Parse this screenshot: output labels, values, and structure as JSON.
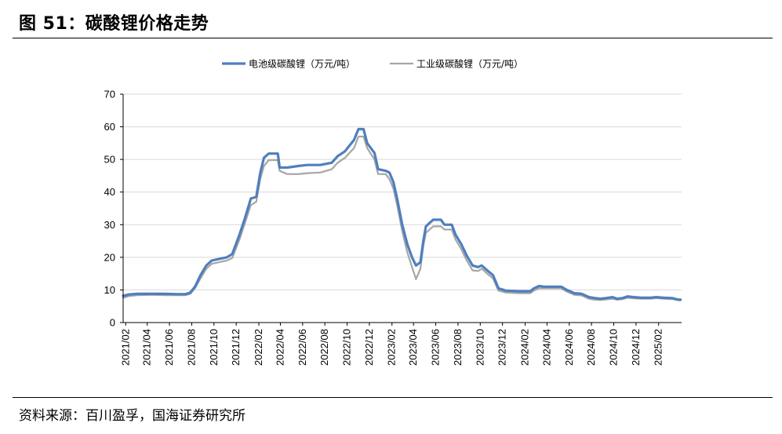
{
  "header": {
    "title": "图 51：碳酸锂价格走势"
  },
  "footer": {
    "source": "资料来源：百川盈孚，国海证券研究所"
  },
  "colors": {
    "battery": "#4f7fbd",
    "industrial": "#a6a6a6",
    "axis": "#000000",
    "grid": "#d9d9d9"
  },
  "chart_data": {
    "type": "line",
    "title": "",
    "xlabel": "",
    "ylabel": "",
    "ylim": [
      0,
      70
    ],
    "yticks": [
      "0",
      "10",
      "20",
      "30",
      "40",
      "50",
      "60",
      "70"
    ],
    "xlim": [
      "2021-01-25",
      "2025-04-05"
    ],
    "xticks": [
      "2021/02",
      "2021/04",
      "2021/06",
      "2021/08",
      "2021/10",
      "2021/12",
      "2022/02",
      "2022/04",
      "2022/06",
      "2022/08",
      "2022/10",
      "2022/12",
      "2023/02",
      "2023/04",
      "2023/06",
      "2023/08",
      "2023/10",
      "2023/12",
      "2024/02",
      "2024/04",
      "2024/06",
      "2024/08",
      "2024/10",
      "2024/12",
      "2025/02"
    ],
    "grid": "horizontal",
    "legend_position": "top",
    "series": [
      {
        "name": "电池级碳酸锂（万元/吨）",
        "color": "#4f7fbd",
        "points": [
          [
            "2021-01-25",
            8.2
          ],
          [
            "2021-02-10",
            8.6
          ],
          [
            "2021-03-05",
            8.8
          ],
          [
            "2021-04-15",
            8.8
          ],
          [
            "2021-05-20",
            8.8
          ],
          [
            "2021-06-20",
            8.7
          ],
          [
            "2021-07-15",
            8.7
          ],
          [
            "2021-07-28",
            9.2
          ],
          [
            "2021-08-10",
            11.0
          ],
          [
            "2021-08-25",
            14.5
          ],
          [
            "2021-09-10",
            17.5
          ],
          [
            "2021-09-25",
            19.0
          ],
          [
            "2021-10-15",
            19.5
          ],
          [
            "2021-11-05",
            20.0
          ],
          [
            "2021-11-20",
            21.0
          ],
          [
            "2021-12-10",
            27.0
          ],
          [
            "2021-12-25",
            32.0
          ],
          [
            "2022-01-10",
            38.0
          ],
          [
            "2022-01-25",
            38.5
          ],
          [
            "2022-02-05",
            46.0
          ],
          [
            "2022-02-15",
            50.5
          ],
          [
            "2022-02-28",
            51.8
          ],
          [
            "2022-03-25",
            51.8
          ],
          [
            "2022-03-30",
            47.5
          ],
          [
            "2022-04-20",
            47.5
          ],
          [
            "2022-05-20",
            48.0
          ],
          [
            "2022-06-15",
            48.3
          ],
          [
            "2022-07-20",
            48.3
          ],
          [
            "2022-08-20",
            49.0
          ],
          [
            "2022-09-05",
            51.0
          ],
          [
            "2022-09-25",
            52.5
          ],
          [
            "2022-10-20",
            56.0
          ],
          [
            "2022-11-01",
            59.3
          ],
          [
            "2022-11-15",
            59.3
          ],
          [
            "2022-11-25",
            55.0
          ],
          [
            "2022-12-15",
            52.0
          ],
          [
            "2022-12-25",
            47.0
          ],
          [
            "2023-01-15",
            46.5
          ],
          [
            "2023-01-25",
            46.0
          ],
          [
            "2023-02-05",
            43.0
          ],
          [
            "2023-02-15",
            38.0
          ],
          [
            "2023-03-01",
            30.0
          ],
          [
            "2023-03-15",
            24.0
          ],
          [
            "2023-03-28",
            20.0
          ],
          [
            "2023-04-08",
            17.5
          ],
          [
            "2023-04-20",
            18.5
          ],
          [
            "2023-04-28",
            25.0
          ],
          [
            "2023-05-05",
            29.5
          ],
          [
            "2023-05-15",
            30.5
          ],
          [
            "2023-05-25",
            31.5
          ],
          [
            "2023-06-15",
            31.5
          ],
          [
            "2023-06-25",
            30.0
          ],
          [
            "2023-07-15",
            30.0
          ],
          [
            "2023-07-25",
            27.0
          ],
          [
            "2023-08-10",
            24.0
          ],
          [
            "2023-08-25",
            20.5
          ],
          [
            "2023-09-10",
            17.5
          ],
          [
            "2023-09-25",
            17.0
          ],
          [
            "2023-10-05",
            17.5
          ],
          [
            "2023-10-20",
            16.0
          ],
          [
            "2023-11-05",
            14.5
          ],
          [
            "2023-11-20",
            10.5
          ],
          [
            "2023-12-10",
            9.8
          ],
          [
            "2024-01-15",
            9.6
          ],
          [
            "2024-02-15",
            9.6
          ],
          [
            "2024-02-25",
            10.5
          ],
          [
            "2024-03-10",
            11.2
          ],
          [
            "2024-03-25",
            11.0
          ],
          [
            "2024-04-15",
            11.0
          ],
          [
            "2024-05-10",
            11.0
          ],
          [
            "2024-05-25",
            10.0
          ],
          [
            "2024-06-15",
            9.0
          ],
          [
            "2024-07-05",
            8.8
          ],
          [
            "2024-07-25",
            7.8
          ],
          [
            "2024-08-10",
            7.5
          ],
          [
            "2024-08-25",
            7.3
          ],
          [
            "2024-09-10",
            7.5
          ],
          [
            "2024-09-28",
            7.8
          ],
          [
            "2024-10-10",
            7.3
          ],
          [
            "2024-10-25",
            7.5
          ],
          [
            "2024-11-08",
            8.0
          ],
          [
            "2024-11-25",
            7.8
          ],
          [
            "2024-12-15",
            7.6
          ],
          [
            "2025-01-10",
            7.6
          ],
          [
            "2025-01-25",
            7.8
          ],
          [
            "2025-02-15",
            7.6
          ],
          [
            "2025-03-10",
            7.5
          ],
          [
            "2025-03-28",
            7.0
          ],
          [
            "2025-04-02",
            7.0
          ]
        ]
      },
      {
        "name": "工业级碳酸锂（万元/吨）",
        "color": "#a6a6a6",
        "points": [
          [
            "2021-01-25",
            7.6
          ],
          [
            "2021-02-10",
            8.1
          ],
          [
            "2021-03-05",
            8.4
          ],
          [
            "2021-04-15",
            8.5
          ],
          [
            "2021-05-20",
            8.4
          ],
          [
            "2021-06-20",
            8.4
          ],
          [
            "2021-07-15",
            8.4
          ],
          [
            "2021-07-28",
            8.8
          ],
          [
            "2021-08-10",
            10.5
          ],
          [
            "2021-08-25",
            13.5
          ],
          [
            "2021-09-10",
            16.5
          ],
          [
            "2021-09-25",
            18.0
          ],
          [
            "2021-10-15",
            18.5
          ],
          [
            "2021-11-05",
            19.0
          ],
          [
            "2021-11-20",
            19.8
          ],
          [
            "2021-12-10",
            25.5
          ],
          [
            "2021-12-25",
            30.5
          ],
          [
            "2022-01-10",
            36.0
          ],
          [
            "2022-01-25",
            37.0
          ],
          [
            "2022-02-05",
            44.0
          ],
          [
            "2022-02-15",
            48.0
          ],
          [
            "2022-02-28",
            49.8
          ],
          [
            "2022-03-25",
            49.8
          ],
          [
            "2022-03-30",
            46.5
          ],
          [
            "2022-04-20",
            45.5
          ],
          [
            "2022-05-20",
            45.5
          ],
          [
            "2022-06-15",
            45.8
          ],
          [
            "2022-07-20",
            46.0
          ],
          [
            "2022-08-20",
            47.0
          ],
          [
            "2022-09-05",
            49.0
          ],
          [
            "2022-09-25",
            50.5
          ],
          [
            "2022-10-20",
            53.5
          ],
          [
            "2022-11-01",
            57.0
          ],
          [
            "2022-11-15",
            57.0
          ],
          [
            "2022-11-25",
            53.5
          ],
          [
            "2022-12-15",
            50.0
          ],
          [
            "2022-12-25",
            45.5
          ],
          [
            "2023-01-15",
            45.5
          ],
          [
            "2023-01-25",
            44.0
          ],
          [
            "2023-02-05",
            41.0
          ],
          [
            "2023-02-15",
            36.0
          ],
          [
            "2023-03-01",
            28.0
          ],
          [
            "2023-03-15",
            21.5
          ],
          [
            "2023-03-28",
            17.0
          ],
          [
            "2023-04-08",
            13.3
          ],
          [
            "2023-04-20",
            16.5
          ],
          [
            "2023-04-28",
            23.5
          ],
          [
            "2023-05-05",
            27.5
          ],
          [
            "2023-05-15",
            28.5
          ],
          [
            "2023-05-25",
            29.5
          ],
          [
            "2023-06-15",
            29.5
          ],
          [
            "2023-06-25",
            28.5
          ],
          [
            "2023-07-15",
            28.5
          ],
          [
            "2023-07-25",
            25.5
          ],
          [
            "2023-08-10",
            22.5
          ],
          [
            "2023-08-25",
            19.0
          ],
          [
            "2023-09-10",
            16.0
          ],
          [
            "2023-09-25",
            15.8
          ],
          [
            "2023-10-05",
            16.5
          ],
          [
            "2023-10-20",
            15.0
          ],
          [
            "2023-11-05",
            13.5
          ],
          [
            "2023-11-20",
            9.8
          ],
          [
            "2023-12-10",
            9.2
          ],
          [
            "2024-01-15",
            9.0
          ],
          [
            "2024-02-15",
            9.0
          ],
          [
            "2024-02-25",
            9.8
          ],
          [
            "2024-03-10",
            10.5
          ],
          [
            "2024-03-25",
            10.5
          ],
          [
            "2024-04-15",
            10.5
          ],
          [
            "2024-05-10",
            10.5
          ],
          [
            "2024-05-25",
            9.5
          ],
          [
            "2024-06-15",
            8.5
          ],
          [
            "2024-07-05",
            8.3
          ],
          [
            "2024-07-25",
            7.3
          ],
          [
            "2024-08-10",
            7.0
          ],
          [
            "2024-08-25",
            6.9
          ],
          [
            "2024-09-10",
            7.1
          ],
          [
            "2024-09-28",
            7.3
          ],
          [
            "2024-10-10",
            7.0
          ],
          [
            "2024-10-25",
            7.2
          ],
          [
            "2024-11-08",
            7.6
          ],
          [
            "2024-11-25",
            7.4
          ],
          [
            "2024-12-15",
            7.3
          ],
          [
            "2025-01-10",
            7.3
          ],
          [
            "2025-01-25",
            7.5
          ],
          [
            "2025-02-15",
            7.3
          ],
          [
            "2025-03-10",
            7.2
          ],
          [
            "2025-03-28",
            6.8
          ],
          [
            "2025-04-02",
            6.8
          ]
        ]
      }
    ]
  }
}
